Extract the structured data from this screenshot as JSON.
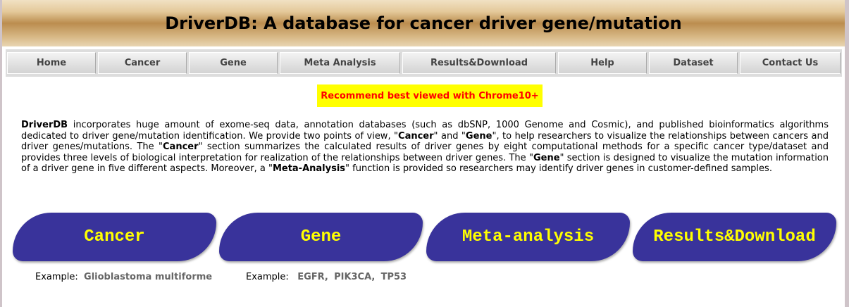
{
  "header": {
    "title": "DriverDB: A database for cancer driver gene/mutation"
  },
  "nav": [
    "Home",
    "Cancer",
    "Gene",
    "Meta Analysis",
    "Results&Download",
    "Help",
    "Dataset",
    "Contact Us"
  ],
  "notice": "Recommend best viewed with Chrome10+",
  "description": {
    "p1": "DriverDB",
    " p2": "",
    "t1": " incorporates huge amount of exome-seq data, annotation databases (such as dbSNP, 1000 Genome and Cosmic), and published bioinformatics algorithms dedicated to driver gene/mutation identification. We provide two points of view, \"",
    "b_cancer": "Cancer",
    "t2": "\" and \"",
    "b_gene": "Gene",
    "t3": "\", to help researchers to visualize the relationships between cancers and driver genes/mutations. The \"",
    "t4": "\" section summarizes the calculated results of driver genes by eight computational methods for a specific cancer type/dataset and provides three levels of biological interpretation for realization of the relationships between driver genes. The \"",
    "t5": "\" section is designed to visualize the mutation information of a driver gene in five different aspects. Moreover, a \"",
    "b_meta": "Meta-Analysis",
    "t6": "\" function is provided so researchers may identify driver genes in customer-defined samples."
  },
  "buttons": [
    "Cancer",
    "Gene",
    "Meta-analysis",
    "Results&Download"
  ],
  "examples": {
    "label": "Example:",
    "cancer": "Glioblastoma multiforme",
    "genes": [
      "EGFR,",
      "PIK3CA,",
      "TP53"
    ]
  },
  "colors": {
    "button_bg": "#39339b",
    "button_text": "#ffff00",
    "notice_bg": "#ffff00",
    "notice_text": "#ff0000"
  }
}
